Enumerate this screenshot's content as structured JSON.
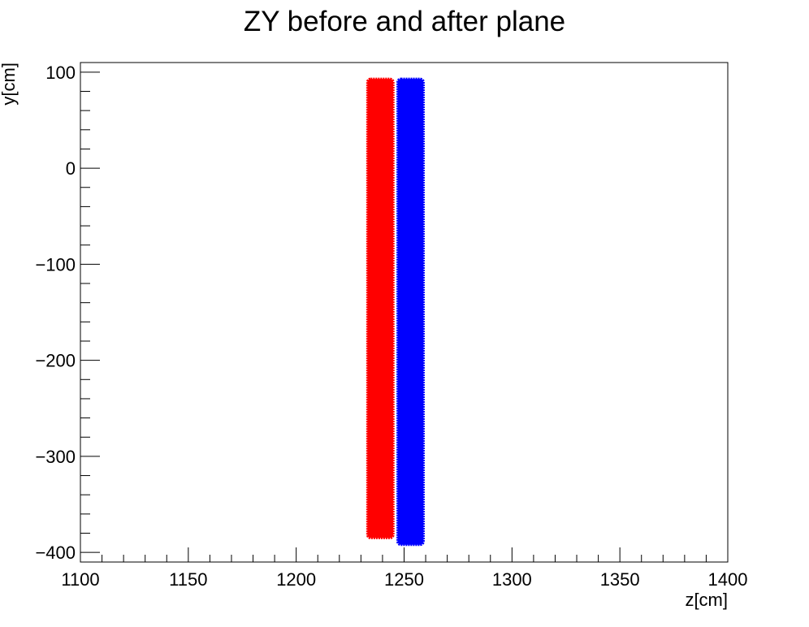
{
  "chart_data": {
    "type": "scatter",
    "title": "ZY before and after plane",
    "xlabel": "z[cm]",
    "ylabel": "y[cm]",
    "xlim": [
      1100,
      1400
    ],
    "ylim": [
      -410,
      110
    ],
    "x_major_ticks": [
      1100,
      1150,
      1200,
      1250,
      1300,
      1350,
      1400
    ],
    "y_major_ticks": [
      -400,
      -300,
      -200,
      -100,
      0,
      100
    ],
    "x_tick_labels": [
      "1100",
      "1150",
      "1200",
      "1250",
      "1300",
      "1350",
      "1400"
    ],
    "y_tick_labels": [
      "−400",
      "−300",
      "−200",
      "−100",
      "0",
      "100"
    ],
    "grid": false,
    "legend": "none",
    "series": [
      {
        "color": "#ff0000",
        "z_range": [
          1233,
          1245
        ],
        "y_range": [
          -385,
          93
        ]
      },
      {
        "color": "#0000ff",
        "z_range": [
          1247,
          1259
        ],
        "y_range": [
          -392,
          93
        ]
      }
    ]
  }
}
